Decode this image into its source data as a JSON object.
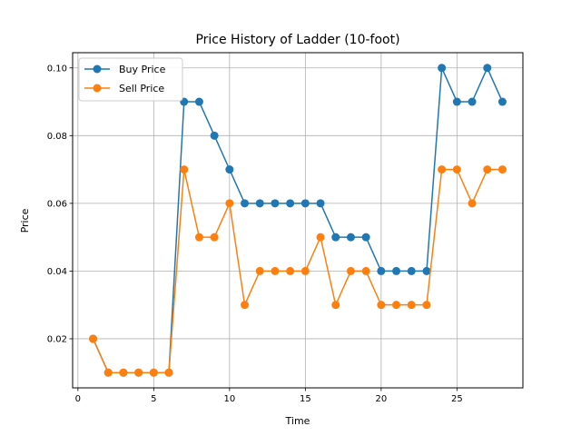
{
  "chart_data": {
    "type": "line",
    "title": "Price History of Ladder (10-foot)",
    "xlabel": "Time",
    "ylabel": "Price",
    "xlim": [
      -0.35,
      29.35
    ],
    "ylim": [
      0.0055,
      0.1045
    ],
    "xticks": [
      0,
      5,
      10,
      15,
      20,
      25
    ],
    "xtick_labels": [
      "0",
      "5",
      "10",
      "15",
      "20",
      "25"
    ],
    "yticks": [
      0.02,
      0.04,
      0.06,
      0.08,
      0.1
    ],
    "ytick_labels": [
      "0.02",
      "0.04",
      "0.06",
      "0.08",
      "0.10"
    ],
    "grid": true,
    "legend_position": "top-left",
    "x": [
      1,
      2,
      3,
      4,
      5,
      6,
      7,
      8,
      9,
      10,
      11,
      12,
      13,
      14,
      15,
      16,
      17,
      18,
      19,
      20,
      21,
      22,
      23,
      24,
      25,
      26,
      27,
      28
    ],
    "series": [
      {
        "name": "Buy Price",
        "color": "#1f77b4",
        "values": [
          0.02,
          0.01,
          0.01,
          0.01,
          0.01,
          0.01,
          0.09,
          0.09,
          0.08,
          0.07,
          0.06,
          0.06,
          0.06,
          0.06,
          0.06,
          0.06,
          0.05,
          0.05,
          0.05,
          0.04,
          0.04,
          0.04,
          0.04,
          0.1,
          0.09,
          0.09,
          0.1,
          0.09
        ]
      },
      {
        "name": "Sell Price",
        "color": "#ff7f0e",
        "values": [
          0.02,
          0.01,
          0.01,
          0.01,
          0.01,
          0.01,
          0.07,
          0.05,
          0.05,
          0.06,
          0.03,
          0.04,
          0.04,
          0.04,
          0.04,
          0.05,
          0.03,
          0.04,
          0.04,
          0.03,
          0.03,
          0.03,
          0.03,
          0.07,
          0.07,
          0.06,
          0.07,
          0.07
        ]
      }
    ]
  }
}
